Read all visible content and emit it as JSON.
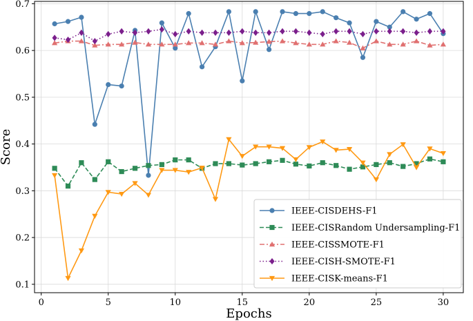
{
  "chart_data": {
    "type": "line",
    "title": "",
    "xlabel": "Epochs",
    "ylabel": "Score",
    "xlim": [
      -0.5,
      31.5
    ],
    "ylim": [
      0.082,
      0.705
    ],
    "xticks": [
      0,
      5,
      10,
      15,
      20,
      25,
      30
    ],
    "yticks": [
      0.1,
      0.2,
      0.3,
      0.4,
      0.5,
      0.6,
      0.7
    ],
    "grid": true,
    "legend_position": "lower-right",
    "x": [
      1,
      2,
      3,
      4,
      5,
      6,
      7,
      8,
      9,
      10,
      11,
      12,
      13,
      14,
      15,
      16,
      17,
      18,
      19,
      20,
      21,
      22,
      23,
      24,
      25,
      26,
      27,
      28,
      29,
      30
    ],
    "series": [
      {
        "name": "IEEE-CISDEHS-F1",
        "color": "#4a7fb0",
        "line_style": "solid",
        "marker": "circle",
        "values": [
          0.657,
          0.662,
          0.671,
          0.442,
          0.527,
          0.524,
          0.643,
          0.333,
          0.659,
          0.605,
          0.679,
          0.565,
          0.608,
          0.683,
          0.535,
          0.683,
          0.602,
          0.683,
          0.679,
          0.679,
          0.683,
          0.67,
          0.659,
          0.585,
          0.662,
          0.65,
          0.683,
          0.667,
          0.679,
          0.636
        ]
      },
      {
        "name": "IEEE-CISRandom Undersampling-F1",
        "color": "#2e8b57",
        "line_style": "dashed",
        "marker": "square",
        "values": [
          0.348,
          0.31,
          0.36,
          0.324,
          0.362,
          0.341,
          0.348,
          0.354,
          0.356,
          0.366,
          0.366,
          0.348,
          0.358,
          0.358,
          0.355,
          0.358,
          0.362,
          0.365,
          0.357,
          0.353,
          0.36,
          0.354,
          0.346,
          0.351,
          0.356,
          0.36,
          0.352,
          0.358,
          0.368,
          0.362
        ]
      },
      {
        "name": "IEEE-CISSMOTE-F1",
        "color": "#e07070",
        "line_style": "dashdot",
        "marker": "triangle-up",
        "values": [
          0.616,
          0.62,
          0.62,
          0.611,
          0.613,
          0.613,
          0.617,
          0.613,
          0.613,
          0.613,
          0.616,
          0.616,
          0.613,
          0.62,
          0.616,
          0.617,
          0.619,
          0.62,
          0.616,
          0.613,
          0.613,
          0.62,
          0.617,
          0.605,
          0.62,
          0.613,
          0.613,
          0.62,
          0.611,
          0.613
        ]
      },
      {
        "name": "IEEE-CISH-SMOTE-F1",
        "color": "#7b1f8c",
        "line_style": "dotted",
        "marker": "diamond",
        "values": [
          0.627,
          0.623,
          0.638,
          0.62,
          0.635,
          0.641,
          0.638,
          0.641,
          0.645,
          0.635,
          0.641,
          0.638,
          0.638,
          0.638,
          0.641,
          0.638,
          0.638,
          0.641,
          0.641,
          0.638,
          0.635,
          0.641,
          0.641,
          0.635,
          0.641,
          0.641,
          0.641,
          0.638,
          0.641,
          0.641
        ]
      },
      {
        "name": "IEEE-CISK-means-F1",
        "color": "#ff9913",
        "line_style": "solid",
        "marker": "triangle-down",
        "values": [
          0.333,
          0.113,
          0.172,
          0.246,
          0.297,
          0.293,
          0.316,
          0.291,
          0.344,
          0.344,
          0.34,
          0.349,
          0.282,
          0.41,
          0.374,
          0.394,
          0.394,
          0.391,
          0.367,
          0.393,
          0.405,
          0.387,
          0.389,
          0.36,
          0.324,
          0.378,
          0.399,
          0.35,
          0.39,
          0.38
        ]
      }
    ]
  }
}
